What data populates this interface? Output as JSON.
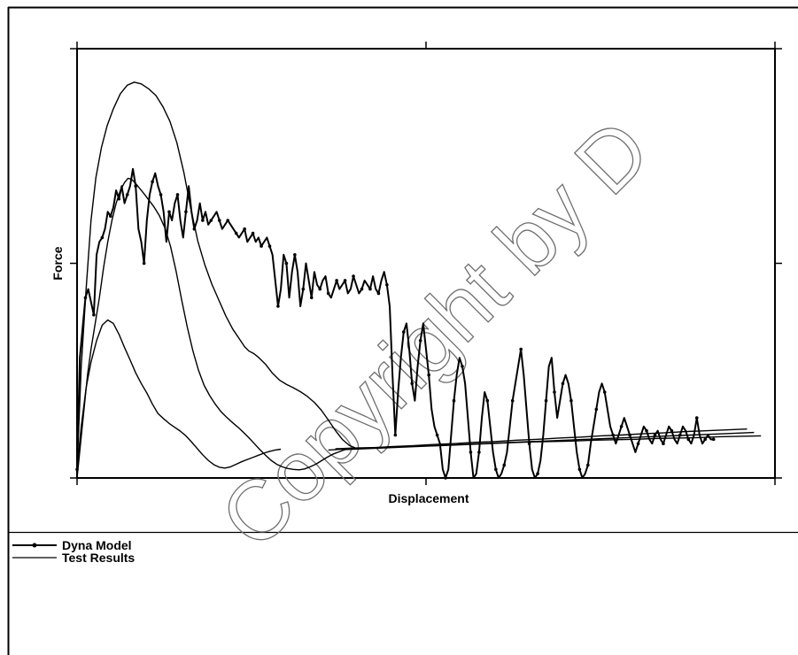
{
  "chart_data": {
    "type": "line",
    "title": "",
    "xlabel": "Displacement",
    "ylabel": "Force",
    "xlim": [
      0,
      100
    ],
    "ylim": [
      0,
      100
    ],
    "grid": false,
    "legend_position": "bottom-left",
    "series": [
      {
        "name": "Dyna Model",
        "marker": "dot",
        "x": [
          0,
          0.4,
          0.8,
          1.2,
          1.6,
          2.0,
          2.4,
          2.8,
          3.2,
          3.6,
          4.0,
          4.4,
          4.8,
          5.2,
          5.6,
          6.0,
          6.4,
          6.8,
          7.2,
          7.6,
          8.0,
          8.4,
          8.8,
          9.2,
          9.6,
          10.0,
          10.4,
          10.8,
          11.2,
          11.6,
          12.0,
          12.4,
          12.8,
          13.2,
          13.6,
          14.0,
          14.4,
          14.8,
          15.2,
          15.6,
          16.0,
          16.4,
          16.8,
          17.2,
          17.6,
          18.0,
          18.4,
          18.8,
          19.2,
          19.6,
          20.0,
          20.4,
          20.8,
          21.2,
          21.6,
          22.0,
          22.4,
          22.8,
          23.2,
          23.6,
          24.0,
          24.4,
          24.8,
          25.2,
          25.6,
          26.0,
          26.4,
          26.8,
          27.2,
          27.6,
          28.0,
          28.4,
          28.8,
          29.2,
          29.6,
          30.0,
          30.4,
          30.8,
          31.2,
          31.6,
          32.0,
          32.4,
          32.8,
          33.2,
          33.6,
          34.0,
          34.4,
          34.8,
          35.2,
          35.6,
          36.0,
          36.4,
          36.8,
          37.2,
          37.6,
          38.0,
          38.4,
          38.8,
          39.2,
          39.6,
          40.0,
          40.4,
          40.8,
          41.2,
          41.6,
          42.0,
          42.4,
          42.8,
          43.2,
          43.6,
          44.0,
          44.4,
          44.8,
          45.2,
          45.6,
          46.0,
          46.4,
          46.8,
          47.2,
          47.6,
          48.0,
          48.4,
          48.8,
          49.2,
          49.6,
          50.0,
          50.4,
          50.8,
          51.2,
          51.6,
          52.0,
          52.4,
          52.8,
          53.2,
          53.6,
          54.0,
          54.4,
          54.8,
          55.2,
          55.6,
          56.0,
          56.4,
          56.8,
          57.2,
          57.6,
          58.0,
          58.4,
          58.8,
          59.2,
          59.6,
          60.0,
          60.4,
          60.8,
          61.2,
          61.6,
          62.0,
          62.4,
          62.8,
          63.2,
          63.6,
          64.0,
          64.4,
          64.8,
          65.2,
          65.6,
          66.0,
          66.4,
          66.8,
          67.2,
          67.6,
          68.0,
          68.4,
          68.8,
          69.2,
          69.6,
          70.0,
          70.4,
          70.8,
          71.2,
          71.6,
          72.0,
          72.4,
          72.8,
          73.2,
          73.6,
          74.0,
          74.4,
          74.8,
          75.2,
          75.6,
          76.0,
          76.4,
          76.8,
          77.2,
          77.6,
          78.0,
          78.4,
          78.8,
          79.2,
          79.6,
          80.0,
          80.4,
          80.8,
          81.2,
          81.6,
          82.0,
          82.4,
          82.8,
          83.2,
          83.6,
          84.0,
          84.4,
          84.8,
          85.2,
          85.6,
          86.0,
          86.4,
          86.8,
          87.2,
          87.6,
          88.0,
          88.4,
          88.8,
          89.2,
          89.6,
          90.0,
          90.4,
          90.8,
          91.2
        ],
        "y": [
          2,
          28,
          35,
          42,
          44,
          41,
          38,
          52,
          55,
          56,
          58,
          62,
          61,
          63,
          67,
          65,
          68,
          64,
          66,
          68,
          72,
          68,
          58,
          55,
          50,
          60,
          66,
          69,
          71,
          68,
          66,
          62,
          55,
          62,
          60,
          64,
          66,
          60,
          56,
          62,
          68,
          62,
          58,
          60,
          64,
          60,
          62,
          59,
          60,
          61,
          62,
          60,
          58,
          59,
          60,
          59,
          58,
          57,
          56,
          57,
          58,
          55,
          56,
          57,
          55,
          56,
          54,
          55,
          56,
          54,
          52,
          46,
          40,
          44,
          52,
          50,
          42,
          48,
          52,
          48,
          40,
          44,
          50,
          46,
          42,
          48,
          45,
          44,
          46,
          47,
          43,
          42,
          44,
          46,
          44,
          45,
          46,
          43,
          44,
          47,
          45,
          43,
          44,
          46,
          45,
          44,
          47,
          44,
          43,
          46,
          48,
          45,
          40,
          24,
          10,
          20,
          28,
          34,
          36,
          30,
          22,
          18,
          26,
          32,
          36,
          30,
          24,
          16,
          12,
          10,
          8,
          2,
          0,
          2,
          10,
          18,
          24,
          28,
          26,
          22,
          14,
          6,
          0,
          1,
          6,
          14,
          20,
          18,
          12,
          6,
          2,
          0,
          1,
          3,
          6,
          12,
          18,
          22,
          26,
          30,
          24,
          16,
          8,
          2,
          0,
          1,
          4,
          10,
          18,
          26,
          28,
          20,
          14,
          18,
          22,
          24,
          22,
          18,
          12,
          6,
          2,
          0,
          1,
          3,
          8,
          12,
          16,
          20,
          22,
          20,
          16,
          12,
          10,
          8,
          10,
          12,
          14,
          12,
          10,
          8,
          6,
          8,
          10,
          12,
          11,
          9,
          8,
          10,
          11,
          9,
          8,
          10,
          12,
          11,
          9,
          8,
          10,
          12,
          11,
          9,
          8,
          10,
          14,
          10,
          8,
          9,
          10,
          9,
          9
        ]
      },
      {
        "name": "Test Results",
        "marker": "none",
        "curves": [
          {
            "x": [
              0,
              0.6,
              1.3,
              2.0,
              2.7,
              3.5,
              4.3,
              5.2,
              6.2,
              7.2,
              8.2,
              9.2,
              10.3,
              11.3,
              12.3,
              13.3,
              14.3,
              15.3,
              16.3,
              17.3,
              18.3,
              19.3,
              20.3,
              21.3,
              22.3,
              23.3,
              24.0,
              24.6,
              25.3,
              26.0,
              27.0,
              28.0,
              29.0,
              30.0,
              31.0,
              32.0,
              33.0,
              34.0,
              35.0,
              36.0,
              37.0,
              38.0,
              39.0,
              40.0
            ],
            "y": [
              2,
              26,
              44,
              60,
              70,
              77,
              82,
              86,
              89.5,
              91.5,
              92.2,
              91.8,
              90.6,
              89.1,
              86.5,
              83.1,
              78.1,
              71.2,
              62.7,
              55.2,
              49.7,
              45.2,
              41.5,
              37.8,
              34.7,
              32.3,
              30.6,
              29.6,
              29.0,
              28.1,
              26.5,
              24.4,
              22.8,
              21.8,
              21.0,
              20.1,
              19.0,
              17.6,
              15.8,
              13.5,
              11.1,
              9.0,
              7.6,
              6.9
            ]
          },
          {
            "x": [
              0,
              0.5,
              1.0,
              1.5,
              2.0,
              2.6,
              3.2,
              3.8,
              4.4,
              5.0,
              5.6,
              6.2,
              6.8,
              7.3,
              7.8,
              8.4,
              9.0,
              9.6,
              10.3,
              11.0,
              11.8,
              12.6,
              13.4,
              14.2,
              15.0,
              15.8,
              16.6,
              17.4,
              18.2,
              19.0,
              19.8,
              20.6,
              21.4,
              22.2,
              23.0,
              23.8,
              24.6,
              25.4,
              26.2,
              27.0,
              27.8,
              28.6,
              29.4,
              30.2,
              31.0,
              31.8,
              32.6,
              33.4,
              34.2,
              35.0,
              35.8,
              36.6,
              37.4,
              38.2,
              39.0
            ],
            "y": [
              0,
              8,
              16,
              24,
              30,
              36,
              42,
              49,
              55,
              60,
              64,
              67,
              68.8,
              69.8,
              69.6,
              68.6,
              67.4,
              66.2,
              64.7,
              63.2,
              61.1,
              58.2,
              53.9,
              48.1,
              41.4,
              35.1,
              29.6,
              25.1,
              21.6,
              19.2,
              17.2,
              15.5,
              14.2,
              13.0,
              11.9,
              10.7,
              9.4,
              8.0,
              6.6,
              5.3,
              4.1,
              3.2,
              2.6,
              2.2,
              2.0,
              1.9,
              2.1,
              2.6,
              3.2,
              4.0,
              4.8,
              5.5,
              6.0,
              6.5,
              6.9
            ]
          },
          {
            "x": [
              0,
              0.6,
              1.3,
              2.0,
              2.8,
              3.6,
              4.4,
              5.2,
              6.0,
              6.8,
              7.6,
              8.4,
              9.2,
              10.0,
              10.8,
              11.6,
              12.4,
              13.2,
              14.0,
              14.8,
              15.6,
              16.4,
              17.2,
              18.0,
              18.8,
              19.6,
              20.4,
              21.2,
              22.0,
              22.8,
              23.6,
              24.4,
              25.2,
              26.0,
              26.8,
              27.6,
              28.4,
              29.2
            ],
            "y": [
              2,
              12,
              21,
              27,
              32,
              35.6,
              36.8,
              36.0,
              33.5,
              30.4,
              27.5,
              24.5,
              22.0,
              19.8,
              17.2,
              15.0,
              13.8,
              12.7,
              11.8,
              10.9,
              9.8,
              8.4,
              6.9,
              5.4,
              4.1,
              3.1,
              2.5,
              2.3,
              2.6,
              3.2,
              3.8,
              4.3,
              4.8,
              5.3,
              5.8,
              6.2,
              6.5,
              6.7
            ]
          },
          {
            "x": [
              37,
              40,
              43,
              46,
              49,
              52,
              55,
              58,
              61,
              64,
              67,
              70,
              73,
              76,
              79,
              82,
              85,
              88,
              91,
              94,
              97
            ],
            "y": [
              6.8,
              7.0,
              7.1,
              7.3,
              7.4,
              7.6,
              7.8,
              8.0,
              8.2,
              8.4,
              8.6,
              8.8,
              9.0,
              9.2,
              9.4,
              9.6,
              9.8,
              10.0,
              10.2,
              10.4,
              10.6
            ]
          },
          {
            "x": [
              38,
              41,
              44,
              47,
              50,
              53,
              56,
              59,
              62,
              65,
              68,
              71,
              74,
              77,
              80,
              83,
              86,
              89,
              92,
              95,
              98
            ],
            "y": [
              6.6,
              6.8,
              7.0,
              7.2,
              7.4,
              7.6,
              7.8,
              8.0,
              8.2,
              8.4,
              8.5,
              8.6,
              8.8,
              8.9,
              9.0,
              9.2,
              9.3,
              9.4,
              9.6,
              9.7,
              9.8
            ]
          },
          {
            "x": [
              36,
              39,
              42,
              45,
              48,
              51,
              54,
              57,
              60,
              63,
              66,
              69,
              72,
              75,
              78,
              81,
              84,
              87,
              90,
              93,
              96
            ],
            "y": [
              6.5,
              6.8,
              7.0,
              7.3,
              7.5,
              7.8,
              8.0,
              8.3,
              8.5,
              8.8,
              9.0,
              9.3,
              9.5,
              9.8,
              10.0,
              10.3,
              10.5,
              10.8,
              11.0,
              11.2,
              11.4
            ]
          }
        ]
      }
    ],
    "legend": {
      "entries": [
        "Dyna Model",
        "Test Results"
      ]
    }
  },
  "watermark": {
    "text": "Copyright by D"
  },
  "colors": {
    "line": "#000000",
    "frame": "#000000",
    "watermark": "#6f6f6f"
  }
}
